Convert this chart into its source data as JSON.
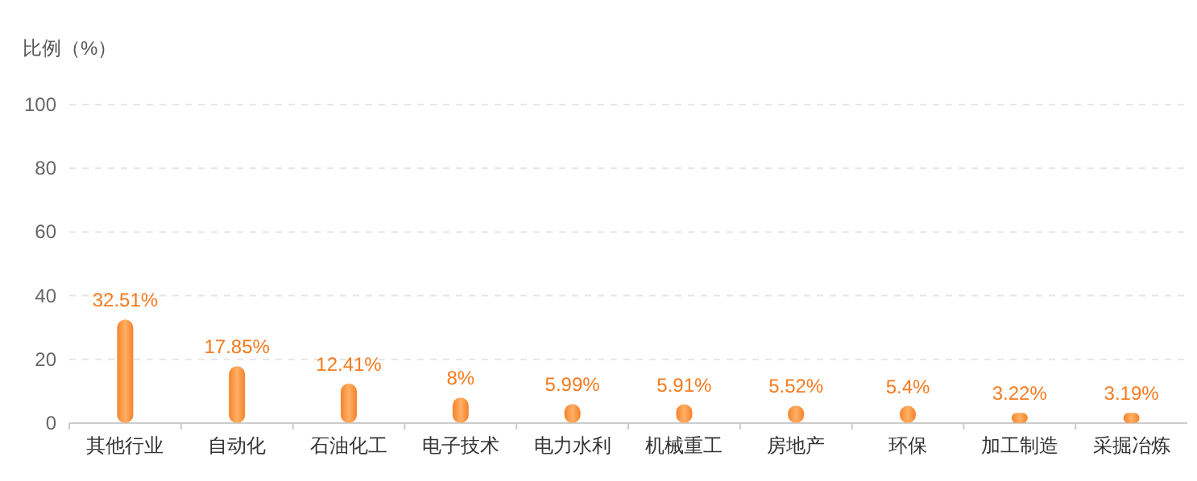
{
  "chart_data": {
    "type": "bar",
    "ylabel": "比例（%）",
    "categories": [
      "其他行业",
      "自动化",
      "石油化工",
      "电子技术",
      "电力水利",
      "机械重工",
      "房地产",
      "环保",
      "加工制造",
      "采掘冶炼"
    ],
    "values": [
      32.51,
      17.85,
      12.41,
      8,
      5.99,
      5.91,
      5.52,
      5.4,
      3.22,
      3.19
    ],
    "value_labels": [
      "32.51%",
      "17.85%",
      "12.41%",
      "8%",
      "5.99%",
      "5.91%",
      "5.52%",
      "5.4%",
      "3.22%",
      "3.19%"
    ],
    "color": "#f7822a",
    "ylim": [
      0,
      100
    ],
    "yticks": [
      0,
      20,
      40,
      60,
      80,
      100
    ],
    "grid": "y"
  }
}
